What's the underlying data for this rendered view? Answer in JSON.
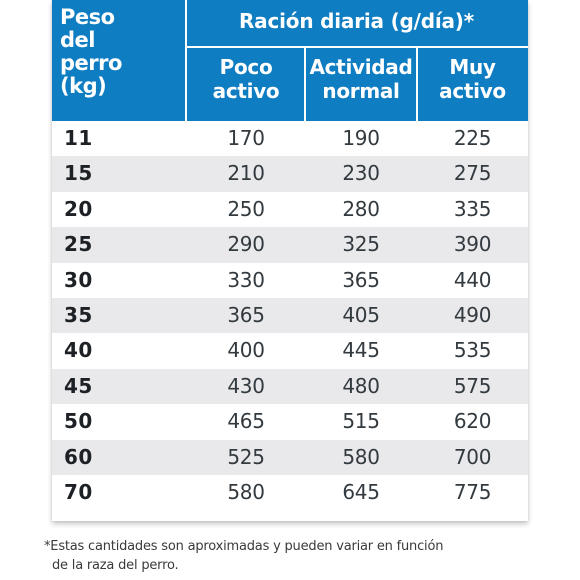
{
  "table": {
    "header": {
      "weight_label": [
        "Peso",
        "del",
        "perro",
        "(kg)"
      ],
      "ration_title": "Ración diaria (g/día)*",
      "columns": [
        [
          "Poco",
          "activo"
        ],
        [
          "Actividad",
          "normal"
        ],
        [
          "Muy",
          "activo"
        ]
      ]
    },
    "rows": [
      {
        "weight": "11",
        "poco": "170",
        "normal": "190",
        "muy": "225"
      },
      {
        "weight": "15",
        "poco": "210",
        "normal": "230",
        "muy": "275"
      },
      {
        "weight": "20",
        "poco": "250",
        "normal": "280",
        "muy": "335"
      },
      {
        "weight": "25",
        "poco": "290",
        "normal": "325",
        "muy": "390"
      },
      {
        "weight": "30",
        "poco": "330",
        "normal": "365",
        "muy": "440"
      },
      {
        "weight": "35",
        "poco": "365",
        "normal": "405",
        "muy": "490"
      },
      {
        "weight": "40",
        "poco": "400",
        "normal": "445",
        "muy": "535"
      },
      {
        "weight": "45",
        "poco": "430",
        "normal": "480",
        "muy": "575"
      },
      {
        "weight": "50",
        "poco": "465",
        "normal": "515",
        "muy": "620"
      },
      {
        "weight": "60",
        "poco": "525",
        "normal": "580",
        "muy": "700"
      },
      {
        "weight": "70",
        "poco": "580",
        "normal": "645",
        "muy": "775"
      }
    ]
  },
  "footnote": {
    "line1": "*Estas cantidades son aproximadas y pueden variar en función",
    "line2": "de la raza del perro."
  },
  "colors": {
    "header_blue": "#0f7dc2",
    "row_alt": "#e9e9eb"
  }
}
